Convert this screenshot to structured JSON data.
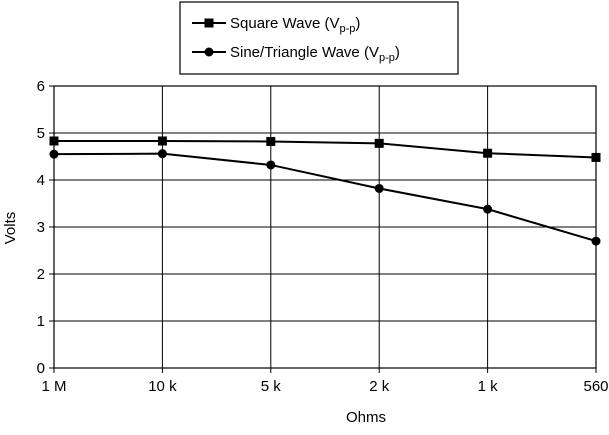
{
  "chart_data": {
    "type": "line",
    "title": "",
    "xlabel": "Ohms",
    "ylabel": "Volts",
    "categories": [
      "1 M",
      "10 k",
      "5 k",
      "2 k",
      "1 k",
      "560"
    ],
    "ylim": [
      0,
      6
    ],
    "yticks": [
      0,
      1,
      2,
      3,
      4,
      5,
      6
    ],
    "grid": true,
    "legend_position": "top-center",
    "series": [
      {
        "name": "Square Wave (Vp-p)",
        "legend": {
          "main": "Square Wave (V",
          "sub": "p-p",
          "tail": ")"
        },
        "marker": "square",
        "color": "#000000",
        "values": [
          4.83,
          4.83,
          4.82,
          4.78,
          4.57,
          4.48
        ]
      },
      {
        "name": "Sine/Triangle Wave (Vp-p)",
        "legend": {
          "main": "Sine/Triangle Wave (V",
          "sub": "p-p",
          "tail": ")"
        },
        "marker": "circle",
        "color": "#000000",
        "values": [
          4.55,
          4.56,
          4.32,
          3.82,
          3.38,
          2.7
        ]
      }
    ]
  }
}
